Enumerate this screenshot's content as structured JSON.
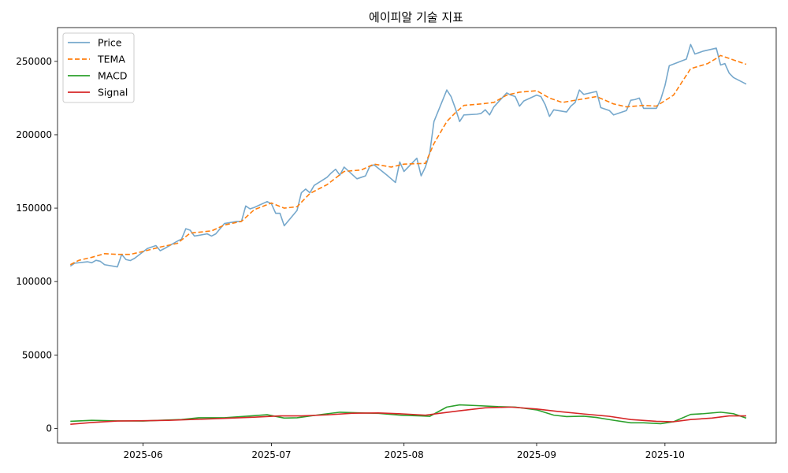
{
  "chart_data": {
    "type": "line",
    "title": "에이피알 기술 지표",
    "xlabel": "",
    "ylabel": "",
    "x_ticks": [
      "2025-06",
      "2025-07",
      "2025-08",
      "2025-09",
      "2025-10"
    ],
    "x_tick_dates": [
      "2025-06-01",
      "2025-07-01",
      "2025-08-01",
      "2025-09-01",
      "2025-10-01"
    ],
    "y_ticks": [
      0,
      50000,
      100000,
      150000,
      200000,
      250000
    ],
    "xlim": [
      "2025-05-12",
      "2025-10-27"
    ],
    "ylim": [
      -10000,
      273000
    ],
    "grid": false,
    "legend_position": "top-left",
    "series": [
      {
        "name": "Price",
        "color": "#76a8cc",
        "style": "solid",
        "points": [
          [
            "2025-05-15",
            110500
          ],
          [
            "2025-05-16",
            112500
          ],
          [
            "2025-05-19",
            113500
          ],
          [
            "2025-05-20",
            112800
          ],
          [
            "2025-05-21",
            114500
          ],
          [
            "2025-05-22",
            113800
          ],
          [
            "2025-05-23",
            111500
          ],
          [
            "2025-05-26",
            110000
          ],
          [
            "2025-05-27",
            118500
          ],
          [
            "2025-05-28",
            115000
          ],
          [
            "2025-05-29",
            114300
          ],
          [
            "2025-05-30",
            115800
          ],
          [
            "2025-06-02",
            122500
          ],
          [
            "2025-06-04",
            124500
          ],
          [
            "2025-06-05",
            121000
          ],
          [
            "2025-06-06",
            122500
          ],
          [
            "2025-06-09",
            127500
          ],
          [
            "2025-06-10",
            129000
          ],
          [
            "2025-06-11",
            136000
          ],
          [
            "2025-06-12",
            135000
          ],
          [
            "2025-06-13",
            131000
          ],
          [
            "2025-06-16",
            132500
          ],
          [
            "2025-06-17",
            131000
          ],
          [
            "2025-06-18",
            132500
          ],
          [
            "2025-06-19",
            136000
          ],
          [
            "2025-06-20",
            139500
          ],
          [
            "2025-06-23",
            141000
          ],
          [
            "2025-06-24",
            141000
          ],
          [
            "2025-06-25",
            151500
          ],
          [
            "2025-06-26",
            149500
          ],
          [
            "2025-06-27",
            150500
          ],
          [
            "2025-06-30",
            154500
          ],
          [
            "2025-07-01",
            153000
          ],
          [
            "2025-07-02",
            146500
          ],
          [
            "2025-07-03",
            146500
          ],
          [
            "2025-07-04",
            138000
          ],
          [
            "2025-07-07",
            148500
          ],
          [
            "2025-07-08",
            160500
          ],
          [
            "2025-07-09",
            163000
          ],
          [
            "2025-07-10",
            160500
          ],
          [
            "2025-07-11",
            165500
          ],
          [
            "2025-07-14",
            171000
          ],
          [
            "2025-07-15",
            174000
          ],
          [
            "2025-07-16",
            176500
          ],
          [
            "2025-07-17",
            172500
          ],
          [
            "2025-07-18",
            178000
          ],
          [
            "2025-07-21",
            170000
          ],
          [
            "2025-07-22",
            171000
          ],
          [
            "2025-07-23",
            172000
          ],
          [
            "2025-07-24",
            178500
          ],
          [
            "2025-07-25",
            179500
          ],
          [
            "2025-07-28",
            172500
          ],
          [
            "2025-07-29",
            170000
          ],
          [
            "2025-07-30",
            167500
          ],
          [
            "2025-07-31",
            181500
          ],
          [
            "2025-08-01",
            175000
          ],
          [
            "2025-08-04",
            184000
          ],
          [
            "2025-08-05",
            172000
          ],
          [
            "2025-08-06",
            178000
          ],
          [
            "2025-08-07",
            187500
          ],
          [
            "2025-08-08",
            209000
          ],
          [
            "2025-08-11",
            230500
          ],
          [
            "2025-08-12",
            226000
          ],
          [
            "2025-08-13",
            218000
          ],
          [
            "2025-08-14",
            209000
          ],
          [
            "2025-08-15",
            213500
          ],
          [
            "2025-08-18",
            214000
          ],
          [
            "2025-08-19",
            214500
          ],
          [
            "2025-08-20",
            217000
          ],
          [
            "2025-08-21",
            213500
          ],
          [
            "2025-08-22",
            219000
          ],
          [
            "2025-08-25",
            228500
          ],
          [
            "2025-08-26",
            227000
          ],
          [
            "2025-08-27",
            226000
          ],
          [
            "2025-08-28",
            219500
          ],
          [
            "2025-08-29",
            223000
          ],
          [
            "2025-09-01",
            227000
          ],
          [
            "2025-09-02",
            226000
          ],
          [
            "2025-09-03",
            220500
          ],
          [
            "2025-09-04",
            212500
          ],
          [
            "2025-09-05",
            217000
          ],
          [
            "2025-09-08",
            215500
          ],
          [
            "2025-09-09",
            219500
          ],
          [
            "2025-09-10",
            222000
          ],
          [
            "2025-09-11",
            230500
          ],
          [
            "2025-09-12",
            227500
          ],
          [
            "2025-09-15",
            229500
          ],
          [
            "2025-09-16",
            218500
          ],
          [
            "2025-09-17",
            217500
          ],
          [
            "2025-09-18",
            216500
          ],
          [
            "2025-09-19",
            213500
          ],
          [
            "2025-09-22",
            216500
          ],
          [
            "2025-09-23",
            223500
          ],
          [
            "2025-09-24",
            224000
          ],
          [
            "2025-09-25",
            225000
          ],
          [
            "2025-09-26",
            218000
          ],
          [
            "2025-09-29",
            218000
          ],
          [
            "2025-09-30",
            224000
          ],
          [
            "2025-10-01",
            233500
          ],
          [
            "2025-10-02",
            247000
          ],
          [
            "2025-10-06",
            251500
          ],
          [
            "2025-10-07",
            261500
          ],
          [
            "2025-10-08",
            255000
          ],
          [
            "2025-10-10",
            257000
          ],
          [
            "2025-10-13",
            259000
          ],
          [
            "2025-10-14",
            247500
          ],
          [
            "2025-10-15",
            248500
          ],
          [
            "2025-10-16",
            242000
          ],
          [
            "2025-10-17",
            239000
          ],
          [
            "2025-10-20",
            234500
          ]
        ]
      },
      {
        "name": "TEMA",
        "color": "#ff7f0e",
        "style": "dashed",
        "points": [
          [
            "2025-05-15",
            111500
          ],
          [
            "2025-05-17",
            114500
          ],
          [
            "2025-05-20",
            116500
          ],
          [
            "2025-05-23",
            119000
          ],
          [
            "2025-05-26",
            118500
          ],
          [
            "2025-05-29",
            118500
          ],
          [
            "2025-06-01",
            120500
          ],
          [
            "2025-06-05",
            123500
          ],
          [
            "2025-06-09",
            126000
          ],
          [
            "2025-06-12",
            133000
          ],
          [
            "2025-06-17",
            134500
          ],
          [
            "2025-06-20",
            138500
          ],
          [
            "2025-06-24",
            141000
          ],
          [
            "2025-06-27",
            149000
          ],
          [
            "2025-07-01",
            153500
          ],
          [
            "2025-07-04",
            150000
          ],
          [
            "2025-07-07",
            151000
          ],
          [
            "2025-07-10",
            160000
          ],
          [
            "2025-07-14",
            166000
          ],
          [
            "2025-07-18",
            175000
          ],
          [
            "2025-07-22",
            176000
          ],
          [
            "2025-07-25",
            180000
          ],
          [
            "2025-07-29",
            178000
          ],
          [
            "2025-08-01",
            180000
          ],
          [
            "2025-08-06",
            180500
          ],
          [
            "2025-08-08",
            194000
          ],
          [
            "2025-08-11",
            209000
          ],
          [
            "2025-08-13",
            215000
          ],
          [
            "2025-08-15",
            220000
          ],
          [
            "2025-08-19",
            221000
          ],
          [
            "2025-08-22",
            222000
          ],
          [
            "2025-08-25",
            227000
          ],
          [
            "2025-08-28",
            229000
          ],
          [
            "2025-09-01",
            230000
          ],
          [
            "2025-09-04",
            225000
          ],
          [
            "2025-09-07",
            222000
          ],
          [
            "2025-09-11",
            224000
          ],
          [
            "2025-09-15",
            226000
          ],
          [
            "2025-09-19",
            221000
          ],
          [
            "2025-09-22",
            219000
          ],
          [
            "2025-09-26",
            220000
          ],
          [
            "2025-09-29",
            219500
          ],
          [
            "2025-10-03",
            227000
          ],
          [
            "2025-10-07",
            245000
          ],
          [
            "2025-10-11",
            248500
          ],
          [
            "2025-10-13",
            252000
          ],
          [
            "2025-10-14",
            254000
          ],
          [
            "2025-10-17",
            251000
          ],
          [
            "2025-10-20",
            248000
          ]
        ]
      },
      {
        "name": "MACD",
        "color": "#2ca02c",
        "style": "solid",
        "points": [
          [
            "2025-05-15",
            4800
          ],
          [
            "2025-05-20",
            5500
          ],
          [
            "2025-05-26",
            5100
          ],
          [
            "2025-06-01",
            5000
          ],
          [
            "2025-06-06",
            5600
          ],
          [
            "2025-06-10",
            6000
          ],
          [
            "2025-06-14",
            7200
          ],
          [
            "2025-06-20",
            7200
          ],
          [
            "2025-06-25",
            8200
          ],
          [
            "2025-06-30",
            9300
          ],
          [
            "2025-07-04",
            7000
          ],
          [
            "2025-07-07",
            7200
          ],
          [
            "2025-07-12",
            9200
          ],
          [
            "2025-07-17",
            11000
          ],
          [
            "2025-07-22",
            10500
          ],
          [
            "2025-07-26",
            10200
          ],
          [
            "2025-07-31",
            9000
          ],
          [
            "2025-08-05",
            8500
          ],
          [
            "2025-08-07",
            8200
          ],
          [
            "2025-08-11",
            14500
          ],
          [
            "2025-08-14",
            16000
          ],
          [
            "2025-08-18",
            15500
          ],
          [
            "2025-08-23",
            14800
          ],
          [
            "2025-08-27",
            14500
          ],
          [
            "2025-09-01",
            12600
          ],
          [
            "2025-09-05",
            9000
          ],
          [
            "2025-09-08",
            8000
          ],
          [
            "2025-09-12",
            8300
          ],
          [
            "2025-09-15",
            7400
          ],
          [
            "2025-09-19",
            5500
          ],
          [
            "2025-09-23",
            3800
          ],
          [
            "2025-09-26",
            3800
          ],
          [
            "2025-09-30",
            3200
          ],
          [
            "2025-10-03",
            4500
          ],
          [
            "2025-10-07",
            9500
          ],
          [
            "2025-10-10",
            10000
          ],
          [
            "2025-10-14",
            11000
          ],
          [
            "2025-10-17",
            10000
          ],
          [
            "2025-10-20",
            7000
          ]
        ]
      },
      {
        "name": "Signal",
        "color": "#d62728",
        "style": "solid",
        "points": [
          [
            "2025-05-15",
            2800
          ],
          [
            "2025-05-20",
            4000
          ],
          [
            "2025-05-26",
            5000
          ],
          [
            "2025-06-01",
            5200
          ],
          [
            "2025-06-07",
            5500
          ],
          [
            "2025-06-12",
            6000
          ],
          [
            "2025-06-20",
            6800
          ],
          [
            "2025-06-27",
            7600
          ],
          [
            "2025-07-03",
            8500
          ],
          [
            "2025-07-08",
            8500
          ],
          [
            "2025-07-14",
            9200
          ],
          [
            "2025-07-20",
            10300
          ],
          [
            "2025-07-26",
            10500
          ],
          [
            "2025-08-01",
            9800
          ],
          [
            "2025-08-06",
            9000
          ],
          [
            "2025-08-10",
            10500
          ],
          [
            "2025-08-14",
            12000
          ],
          [
            "2025-08-20",
            14000
          ],
          [
            "2025-08-26",
            14500
          ],
          [
            "2025-09-01",
            13200
          ],
          [
            "2025-09-06",
            11500
          ],
          [
            "2025-09-12",
            9800
          ],
          [
            "2025-09-18",
            8200
          ],
          [
            "2025-09-23",
            6000
          ],
          [
            "2025-09-29",
            4800
          ],
          [
            "2025-10-03",
            4500
          ],
          [
            "2025-10-07",
            6000
          ],
          [
            "2025-10-12",
            7000
          ],
          [
            "2025-10-16",
            8500
          ],
          [
            "2025-10-20",
            8500
          ]
        ]
      }
    ]
  }
}
